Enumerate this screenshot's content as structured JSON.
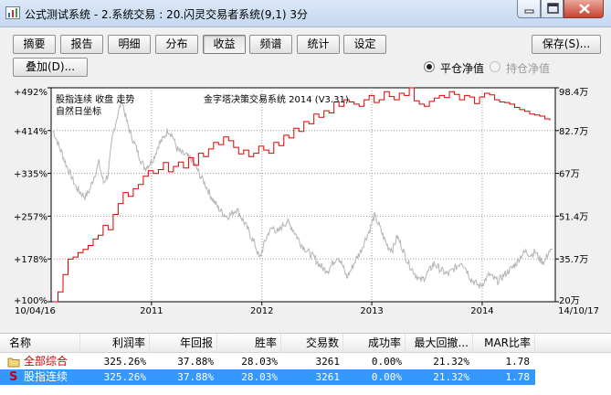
{
  "window": {
    "title": "公式测试系统 - 2.系统交易 : 20.闪灵交易者系统(9,1) 3分"
  },
  "tabs": [
    "摘要",
    "报告",
    "明细",
    "分布",
    "收益",
    "频谱",
    "统计",
    "设定"
  ],
  "active_tab": "收益",
  "toolbar": {
    "save_label": "保存(S)...",
    "overlay_label": "叠加(D)..."
  },
  "options": {
    "net_value_close": "平仓净值",
    "net_value_hold": "持仓净值",
    "selected": "平仓净值"
  },
  "chart_data": {
    "type": "line",
    "legend": [
      "股指连续  收盘  走势",
      "自然日坐标"
    ],
    "system_label": "金字塔决策交易系统 2014 (V3.31)",
    "x_start_label": "10/04/16",
    "x_end_label": "14/10/17",
    "x_ticks": [
      "2011",
      "2012",
      "2013",
      "2014"
    ],
    "y_left_ticks": [
      "+492%",
      "+414%",
      "+335%",
      "+257%",
      "+178%",
      "+100%"
    ],
    "y_right_ticks": [
      "98.4万",
      "82.7万",
      "67万",
      "51.4万",
      "35.7万",
      "20万"
    ],
    "y_left_range": [
      100,
      492
    ],
    "y_right_range": [
      20,
      98.4
    ],
    "colors": {
      "equity": "#e00000",
      "price": "#b4b4b4"
    },
    "series": [
      {
        "type": "step",
        "values_pct": [
          100,
          118,
          150,
          178,
          182,
          190,
          196,
          203,
          215,
          222,
          240,
          232,
          260,
          280,
          300,
          293,
          307,
          315,
          330,
          340,
          335,
          342,
          355,
          338,
          348,
          356,
          345,
          364,
          350,
          372,
          366,
          380,
          392,
          388,
          402,
          395,
          383,
          371,
          378,
          366,
          372,
          385,
          378,
          372,
          392,
          386,
          405,
          400,
          418,
          412,
          430,
          426,
          444,
          438,
          450,
          446,
          466,
          458,
          470,
          466,
          462,
          458,
          470,
          478,
          465,
          470,
          485,
          476,
          470,
          482,
          478,
          492,
          468,
          462,
          458,
          467,
          473,
          478,
          474,
          485,
          480,
          470,
          478,
          475,
          463,
          475,
          482,
          479,
          470,
          466,
          465,
          462,
          456,
          452,
          449,
          444,
          442,
          440,
          435,
          432
        ]
      },
      {
        "type": "line",
        "values_pct": [
          414,
          392,
          371,
          348,
          330,
          310,
          300,
          292,
          305,
          330,
          355,
          318,
          333,
          404,
          440,
          470,
          432,
          405,
          385,
          362,
          345,
          352,
          365,
          388,
          398,
          415,
          405,
          380,
          372,
          368,
          362,
          350,
          332,
          318,
          300,
          285,
          272,
          262,
          256,
          262,
          270,
          255,
          240,
          222,
          205,
          178,
          206,
          228,
          236,
          226,
          240,
          247,
          236,
          222,
          206,
          196,
          188,
          180,
          168,
          160,
          158,
          172,
          184,
          168,
          144,
          160,
          178,
          192,
          214,
          232,
          258,
          240,
          218,
          200,
          196,
          220,
          200,
          178,
          162,
          150,
          138,
          145,
          158,
          170,
          162,
          155,
          150,
          158,
          165,
          174,
          160,
          142,
          134,
          128,
          138,
          150,
          142,
          138,
          147,
          155,
          162,
          172,
          185,
          192,
          186,
          192,
          178,
          172,
          192,
          193
        ]
      }
    ]
  },
  "table": {
    "columns": [
      "名称",
      "利润率",
      "年回报",
      "胜率",
      "交易数",
      "成功率",
      "最大回撤...",
      "MAR比率"
    ],
    "rows": [
      {
        "name": "全部综合",
        "profit": "325.26%",
        "annual": "37.88%",
        "winrate": "28.03%",
        "trades": "3261",
        "success": "0.00%",
        "drawdown": "21.32%",
        "mar": "1.78",
        "selected": false
      },
      {
        "name": "股指连续",
        "profit": "325.26%",
        "annual": "37.88%",
        "winrate": "28.03%",
        "trades": "3261",
        "success": "0.00%",
        "drawdown": "21.32%",
        "mar": "1.78",
        "selected": true
      }
    ]
  }
}
